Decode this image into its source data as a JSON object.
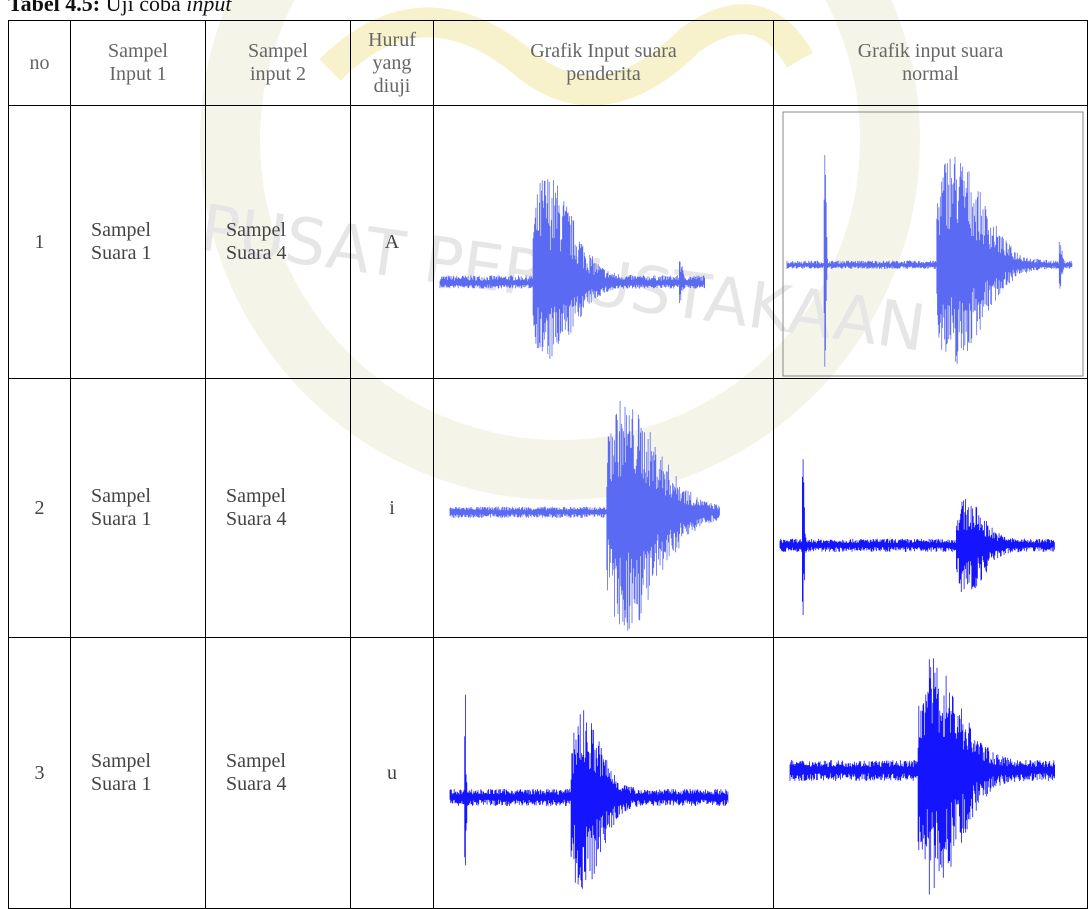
{
  "caption": {
    "label": "Tabel 4.5:",
    "text": "Uji coba",
    "emphasis": "input"
  },
  "watermark": "PUSAT PERPUSTAKAAN",
  "table": {
    "headers": [
      "no",
      "Sampel\nInput 1",
      "Sampel\ninput 2",
      "Huruf\nyang\ndiuji",
      "Grafik Input suara\npenderita",
      "Grafik input suara\nnormal"
    ],
    "rows": [
      [
        "1",
        "Sampel\nSuara 1",
        "Sampel\nSuara 4",
        "A"
      ],
      [
        "2",
        "Sampel\nSuara 1",
        "Sampel\nSuara 4",
        "i"
      ],
      [
        "3",
        "Sampel\nSuara 1",
        "Sampel\nSuara 4",
        "u"
      ]
    ]
  }
}
